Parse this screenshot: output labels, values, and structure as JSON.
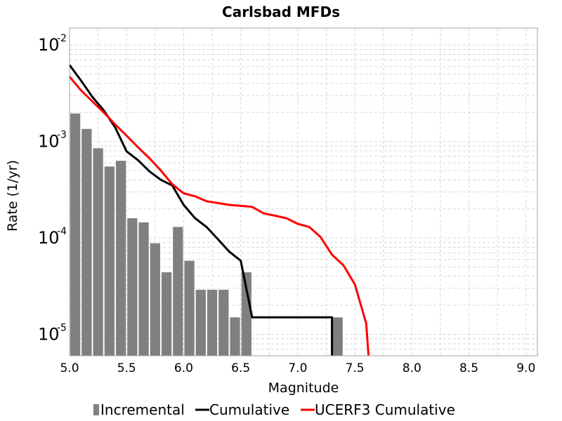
{
  "chart_data": {
    "type": "bar",
    "title": "Carlsbad MFDs",
    "xlabel": "Magnitude",
    "ylabel": "Rate (1/yr)",
    "xlim": [
      5.0,
      9.1
    ],
    "ylim": [
      6e-06,
      0.015
    ],
    "yscale": "log",
    "grid": true,
    "legend_position": "bottom",
    "x_ticks": [
      "5.0",
      "5.5",
      "6.0",
      "6.5",
      "7.0",
      "7.5",
      "8.0",
      "8.5",
      "9.0"
    ],
    "y_ticks": [
      {
        "value": 1e-05,
        "base": "10",
        "exp": "-5"
      },
      {
        "value": 0.0001,
        "base": "10",
        "exp": "-4"
      },
      {
        "value": 0.001,
        "base": "10",
        "exp": "-3"
      },
      {
        "value": 0.01,
        "base": "10",
        "exp": "-2"
      }
    ],
    "series": [
      {
        "name": "Incremental",
        "kind": "bar",
        "color": "#808080",
        "bin_width": 0.1,
        "x": [
          5.05,
          5.15,
          5.25,
          5.35,
          5.45,
          5.55,
          5.65,
          5.75,
          5.85,
          5.95,
          6.05,
          6.15,
          6.25,
          6.35,
          6.45,
          6.55,
          7.35
        ],
        "values": [
          0.00195,
          0.00135,
          0.00085,
          0.00055,
          0.00063,
          0.00016,
          0.000145,
          8.8e-05,
          4.4e-05,
          0.00013,
          5.8e-05,
          2.9e-05,
          2.9e-05,
          2.9e-05,
          1.5e-05,
          4.4e-05,
          1.5e-05
        ]
      },
      {
        "name": "Cumulative",
        "kind": "line",
        "color": "#000000",
        "x": [
          5.0,
          5.1,
          5.2,
          5.3,
          5.4,
          5.5,
          5.6,
          5.7,
          5.8,
          5.9,
          6.0,
          6.1,
          6.2,
          6.3,
          6.4,
          6.5,
          6.6,
          6.7,
          7.3,
          7.3
        ],
        "values": [
          0.0062,
          0.0043,
          0.0029,
          0.0021,
          0.0014,
          0.00079,
          0.00064,
          0.00049,
          0.0004,
          0.00035,
          0.00022,
          0.00016,
          0.00013,
          9.7e-05,
          7.2e-05,
          5.8e-05,
          1.5e-05,
          1.5e-05,
          1.5e-05,
          6e-06
        ]
      },
      {
        "name": "UCERF3 Cumulative",
        "kind": "line",
        "color": "#ff0000",
        "x": [
          5.0,
          5.1,
          5.2,
          5.3,
          5.4,
          5.5,
          5.6,
          5.7,
          5.8,
          5.9,
          6.0,
          6.1,
          6.2,
          6.3,
          6.4,
          6.5,
          6.6,
          6.7,
          6.8,
          6.9,
          7.0,
          7.1,
          7.2,
          7.3,
          7.4,
          7.5,
          7.6,
          7.62
        ],
        "values": [
          0.0047,
          0.0034,
          0.0026,
          0.002,
          0.0015,
          0.00115,
          0.00087,
          0.00067,
          0.0005,
          0.00036,
          0.00029,
          0.00027,
          0.00024,
          0.00023,
          0.00022,
          0.000215,
          0.00021,
          0.00018,
          0.00017,
          0.00016,
          0.00014,
          0.00013,
          0.000102,
          6.7e-05,
          5.2e-05,
          3.3e-05,
          1.3e-05,
          6e-06
        ]
      }
    ]
  }
}
